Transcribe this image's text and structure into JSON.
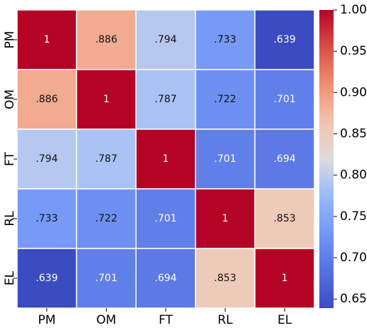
{
  "chart_data": {
    "type": "heatmap",
    "title": "",
    "xlabel": "",
    "ylabel": "",
    "x_categories": [
      "PM",
      "OM",
      "FT",
      "RL",
      "EL"
    ],
    "y_categories": [
      "PM",
      "OM",
      "FT",
      "RL",
      "EL"
    ],
    "values": [
      [
        1.0,
        0.886,
        0.794,
        0.733,
        0.639
      ],
      [
        0.886,
        1.0,
        0.787,
        0.722,
        0.701
      ],
      [
        0.794,
        0.787,
        1.0,
        0.701,
        0.694
      ],
      [
        0.733,
        0.722,
        0.701,
        1.0,
        0.853
      ],
      [
        0.639,
        0.701,
        0.694,
        0.853,
        1.0
      ]
    ],
    "cell_labels": [
      [
        "1",
        ".886",
        ".794",
        ".733",
        ".639"
      ],
      [
        ".886",
        "1",
        ".787",
        ".722",
        ".701"
      ],
      [
        ".794",
        ".787",
        "1",
        ".701",
        ".694"
      ],
      [
        ".733",
        ".722",
        ".701",
        "1",
        ".853"
      ],
      [
        ".639",
        ".701",
        ".694",
        ".853",
        "1"
      ]
    ],
    "colormap": "coolwarm",
    "color_range": [
      0.639,
      1.0
    ],
    "colorbar": {
      "ticks": [
        0.65,
        0.7,
        0.75,
        0.8,
        0.85,
        0.9,
        0.95,
        1.0
      ],
      "tick_labels": [
        "0.65",
        "0.70",
        "0.75",
        "0.80",
        "0.85",
        "0.90",
        "0.95",
        "1.00"
      ]
    },
    "grid": false,
    "legend": "colorbar-right"
  }
}
